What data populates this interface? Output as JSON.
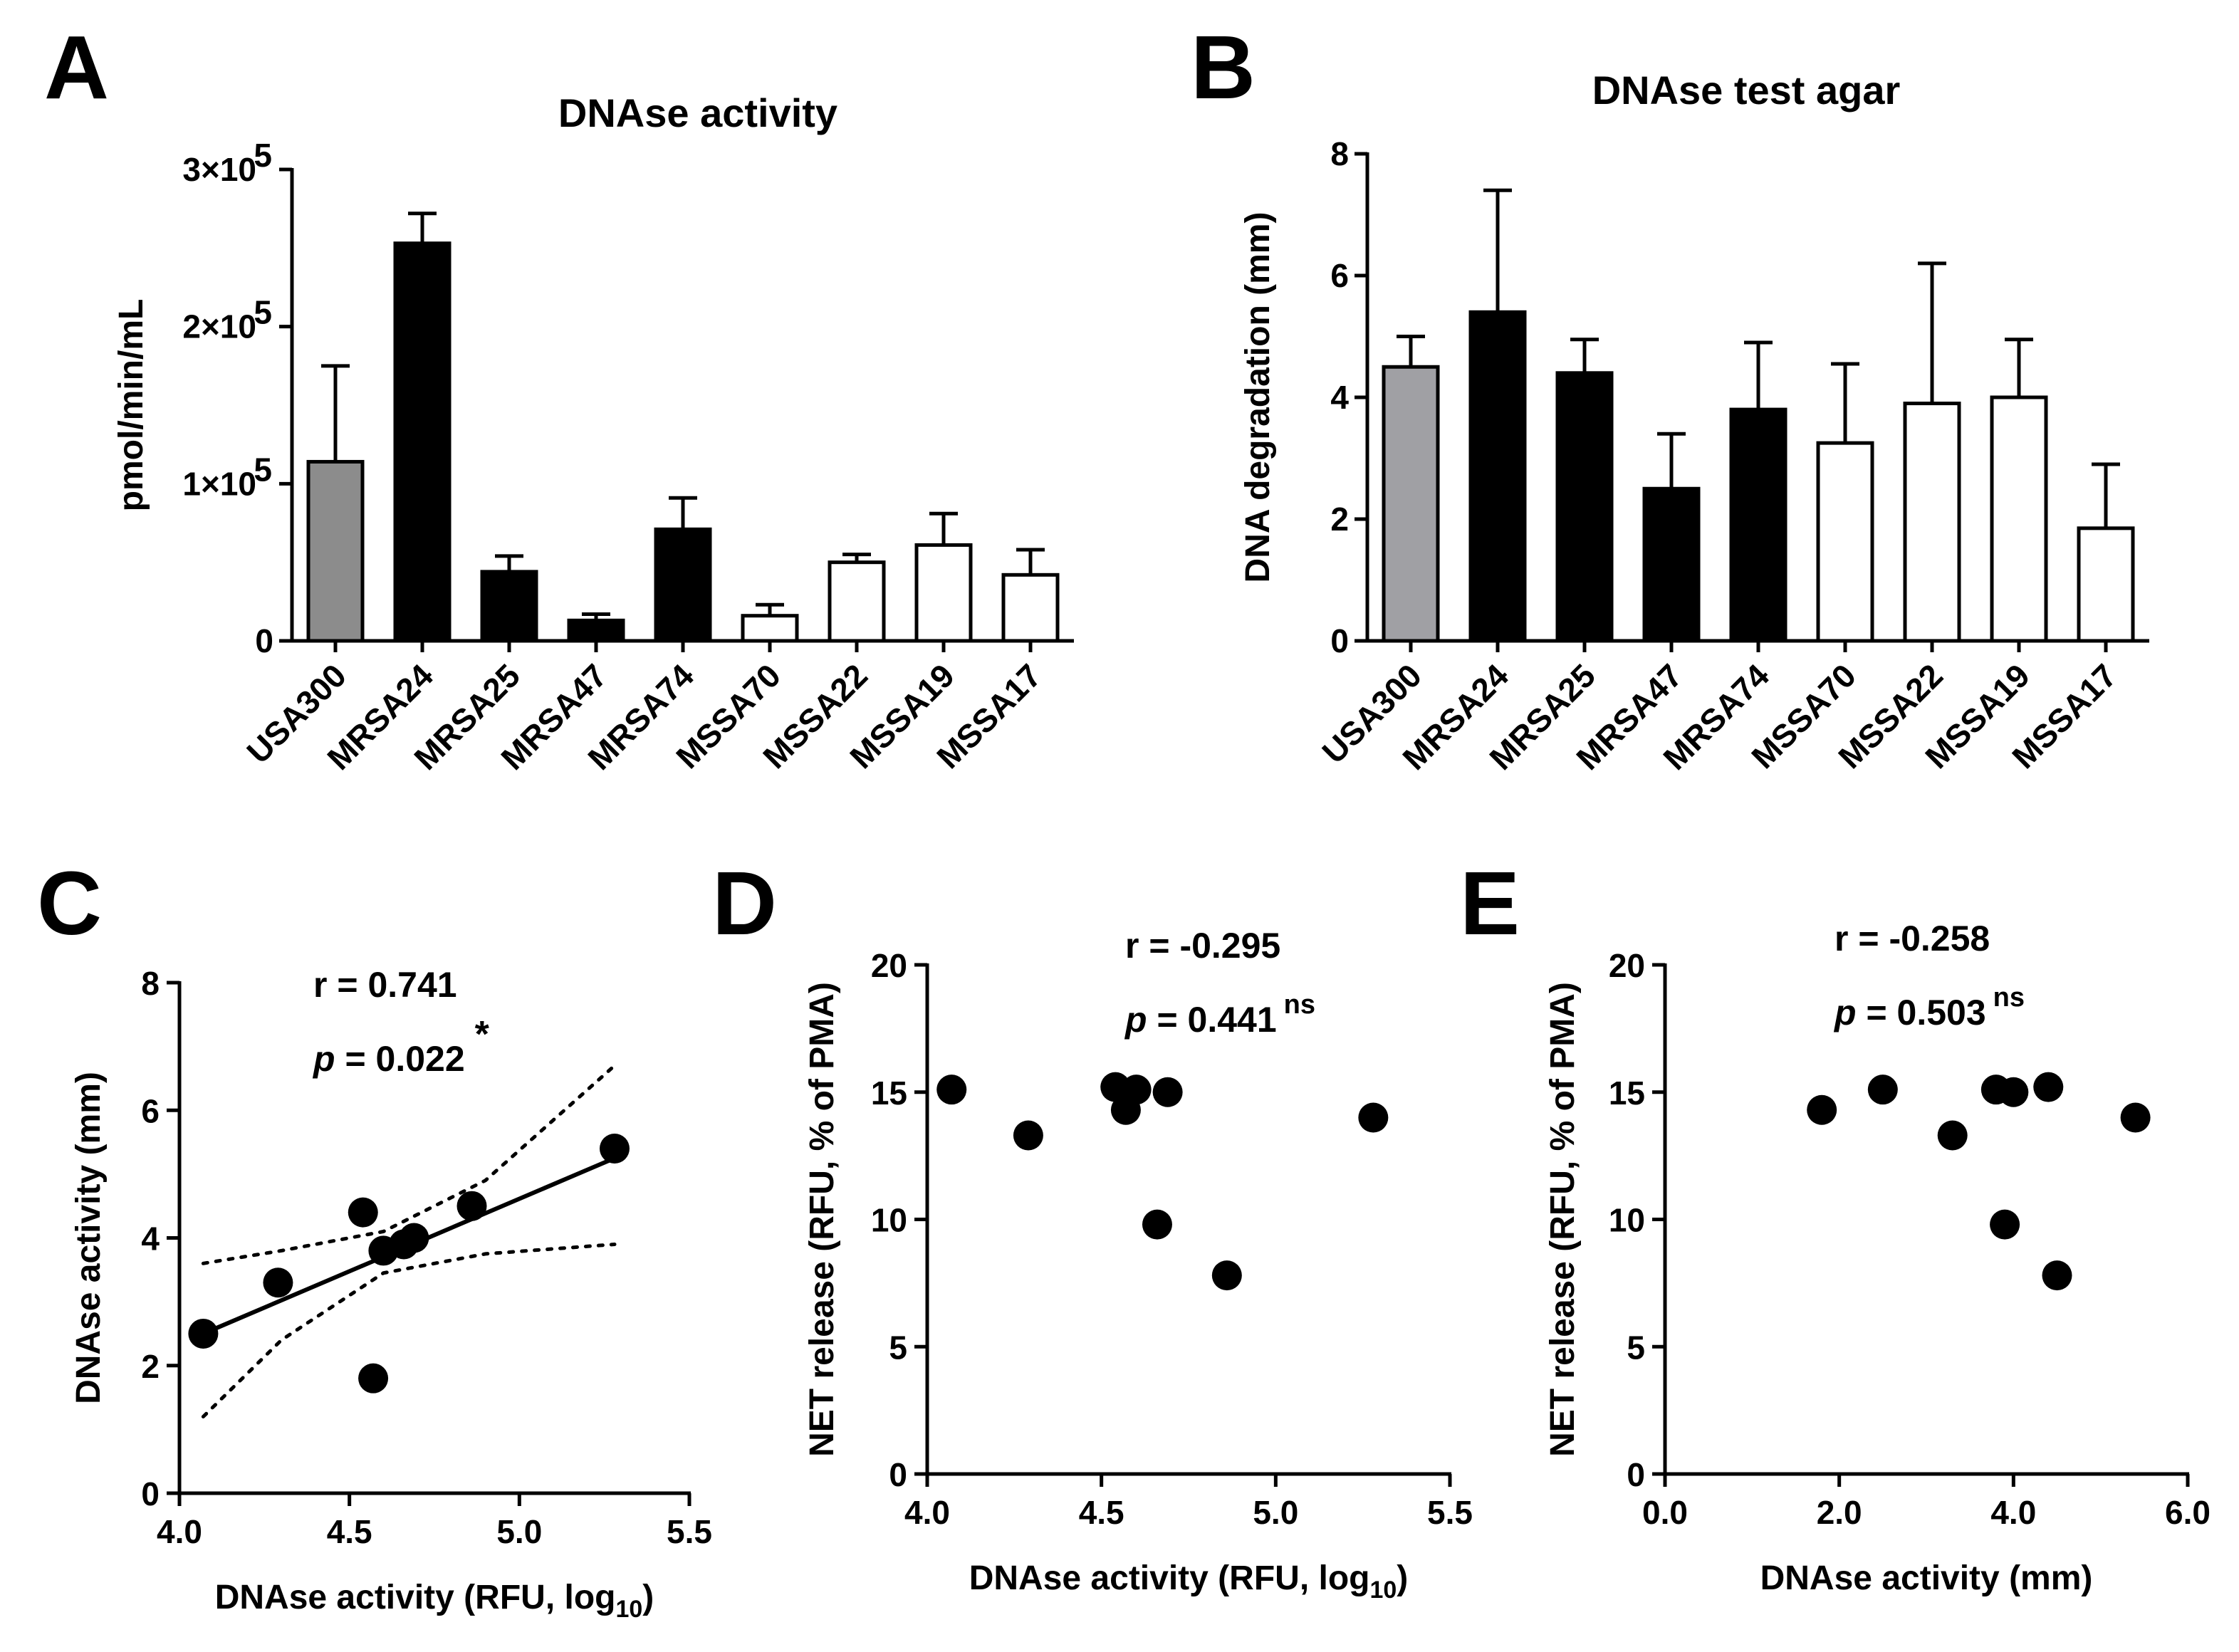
{
  "chart_data": [
    {
      "panel": "A",
      "type": "bar",
      "title": "DNAse activity",
      "xlabel": "",
      "ylabel": "pmol/min/mL",
      "ylim": [
        0,
        300000
      ],
      "yticks": [
        0,
        100000,
        200000,
        300000
      ],
      "ytick_labels": [
        "0",
        "1×10",
        "2×10",
        "3×10"
      ],
      "ytick_exponent": "5",
      "categories": [
        "USA300",
        "MRSA24",
        "MRSA25",
        "MRSA47",
        "MRSA74",
        "MSSA70",
        "MSSA22",
        "MSSA19",
        "MSSA17"
      ],
      "values": [
        114000,
        253000,
        44000,
        13000,
        71000,
        16000,
        50000,
        61000,
        42000
      ],
      "errors": [
        61000,
        19000,
        10000,
        4000,
        20000,
        7000,
        5000,
        20000,
        16000
      ],
      "groups": [
        "reference",
        "MRSA",
        "MRSA",
        "MRSA",
        "MRSA",
        "MSSA",
        "MSSA",
        "MSSA",
        "MSSA"
      ]
    },
    {
      "panel": "B",
      "type": "bar",
      "title": "DNAse test agar",
      "xlabel": "",
      "ylabel": "DNA degradation (mm)",
      "ylim": [
        0,
        8
      ],
      "yticks": [
        0,
        2,
        4,
        6,
        8
      ],
      "ytick_labels": [
        "0",
        "2",
        "4",
        "6",
        "8"
      ],
      "categories": [
        "USA300",
        "MRSA24",
        "MRSA25",
        "MRSA47",
        "MRSA74",
        "MSSA70",
        "MSSA22",
        "MSSA19",
        "MSSA17"
      ],
      "values": [
        4.5,
        5.4,
        4.4,
        2.5,
        3.8,
        3.25,
        3.9,
        4.0,
        1.85
      ],
      "errors": [
        0.5,
        2.0,
        0.55,
        0.9,
        1.1,
        1.3,
        2.3,
        0.95,
        1.05
      ],
      "groups": [
        "reference",
        "MRSA",
        "MRSA",
        "MRSA",
        "MRSA",
        "MSSA",
        "MSSA",
        "MSSA",
        "MSSA"
      ]
    },
    {
      "panel": "C",
      "type": "scatter",
      "xlabel": "DNAse activity (RFU, log",
      "xlabel_sub": "10",
      "xlabel_end": ")",
      "ylabel": "DNAse activity (mm)",
      "xlim": [
        4.0,
        5.5
      ],
      "ylim": [
        0,
        8
      ],
      "xticks": [
        4.0,
        4.5,
        5.0,
        5.5
      ],
      "xtick_labels": [
        "4.0",
        "4.5",
        "5.0",
        "5.5"
      ],
      "yticks": [
        0,
        2,
        4,
        6,
        8
      ],
      "ytick_labels": [
        "0",
        "2",
        "4",
        "6",
        "8"
      ],
      "x": [
        4.07,
        4.29,
        4.54,
        4.57,
        4.6,
        4.66,
        4.69,
        4.86,
        5.28
      ],
      "y": [
        2.5,
        3.3,
        4.4,
        1.8,
        3.8,
        3.9,
        4.0,
        4.5,
        5.4
      ],
      "fit": {
        "x": [
          4.07,
          5.28
        ],
        "y": [
          2.5,
          5.25
        ]
      },
      "ci_upper": {
        "x": [
          4.07,
          4.3,
          4.6,
          4.9,
          5.28
        ],
        "y": [
          3.6,
          3.8,
          4.1,
          4.9,
          6.7
        ]
      },
      "ci_lower": {
        "x": [
          4.07,
          4.3,
          4.6,
          4.9,
          5.28
        ],
        "y": [
          1.2,
          2.4,
          3.45,
          3.75,
          3.9
        ]
      },
      "stat_r": "r = 0.741",
      "stat_p_label": "p",
      "stat_p_value": " = 0.022",
      "stat_sig": "*"
    },
    {
      "panel": "D",
      "type": "scatter",
      "xlabel": "DNAse activity (RFU, log",
      "xlabel_sub": "10",
      "xlabel_end": ")",
      "ylabel": "NET release (RFU, % of PMA)",
      "xlim": [
        4.0,
        5.5
      ],
      "ylim": [
        0,
        20
      ],
      "xticks": [
        4.0,
        4.5,
        5.0,
        5.5
      ],
      "xtick_labels": [
        "4.0",
        "4.5",
        "5.0",
        "5.5"
      ],
      "yticks": [
        0,
        5,
        10,
        15,
        20
      ],
      "ytick_labels": [
        "0",
        "5",
        "10",
        "15",
        "20"
      ],
      "x": [
        4.07,
        4.29,
        4.54,
        4.57,
        4.6,
        4.66,
        4.69,
        4.86,
        5.28
      ],
      "y": [
        15.1,
        13.3,
        15.2,
        14.3,
        15.1,
        9.8,
        15.0,
        7.8,
        14.0
      ],
      "stat_r": "r = -0.295",
      "stat_p_label": "p",
      "stat_p_value": " = 0.441",
      "stat_sig": "ns"
    },
    {
      "panel": "E",
      "type": "scatter",
      "xlabel": "DNAse activity (mm)",
      "ylabel": "NET release (RFU, % of PMA)",
      "xlim": [
        0,
        6
      ],
      "ylim": [
        0,
        20
      ],
      "xticks": [
        0,
        2,
        4,
        6
      ],
      "xtick_labels": [
        "0.0",
        "2.0",
        "4.0",
        "6.0"
      ],
      "yticks": [
        0,
        5,
        10,
        15,
        20
      ],
      "ytick_labels": [
        "0",
        "5",
        "10",
        "15",
        "20"
      ],
      "x": [
        1.8,
        2.5,
        3.3,
        3.8,
        3.9,
        4.0,
        4.4,
        4.5,
        5.4
      ],
      "y": [
        14.3,
        15.1,
        13.3,
        15.1,
        9.8,
        15.0,
        15.2,
        7.8,
        14.0
      ],
      "stat_r": "r = -0.258",
      "stat_p_label": "p",
      "stat_p_value": " = 0.503",
      "stat_sig": "ns"
    }
  ],
  "colors": {
    "reference": "#8c8c8c",
    "reference_b": "#a0a0a4",
    "MRSA": "#000000",
    "MSSA": "#ffffff",
    "axis": "#000000"
  }
}
